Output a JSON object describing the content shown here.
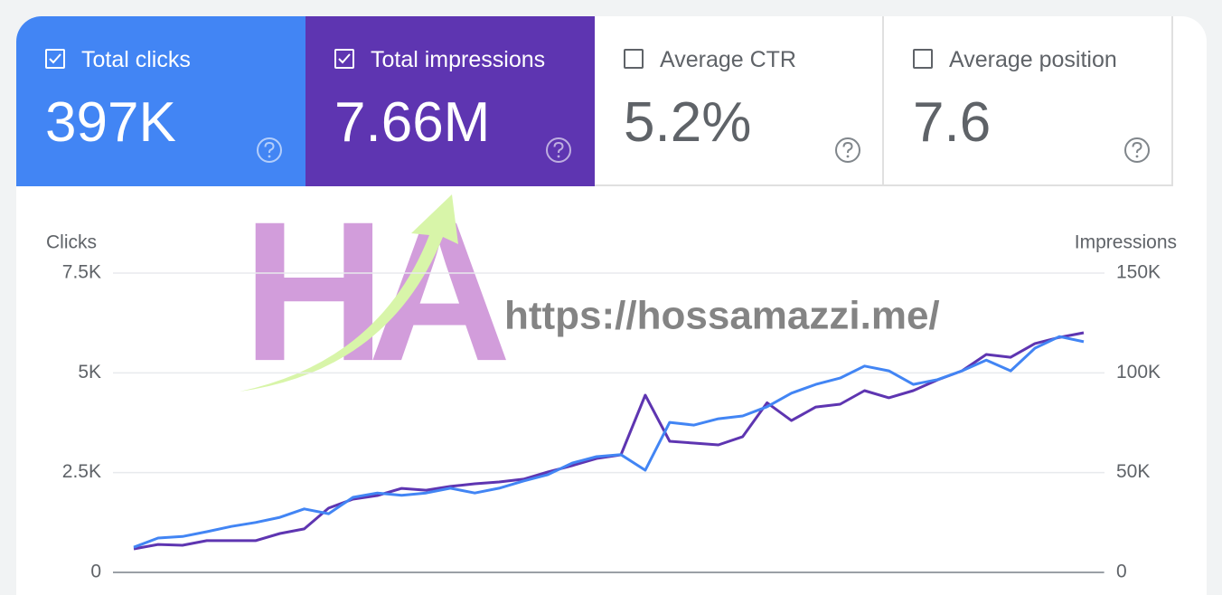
{
  "cards": [
    {
      "label": "Total clicks",
      "value": "397K",
      "checked": true,
      "color": "#4285f4"
    },
    {
      "label": "Total impressions",
      "value": "7.66M",
      "checked": true,
      "color": "#5e35b1"
    },
    {
      "label": "Average CTR",
      "value": "5.2%",
      "checked": false,
      "color": "#ffffff"
    },
    {
      "label": "Average position",
      "value": "7.6",
      "checked": false,
      "color": "#ffffff"
    }
  ],
  "watermark": {
    "logo": "HA",
    "url": "https://hossamazzi.me/"
  },
  "chart_data": {
    "type": "line",
    "categories": [
      null,
      null,
      null,
      null,
      null,
      null,
      null,
      null,
      null,
      null,
      null,
      null,
      null,
      null,
      null,
      null,
      null,
      null,
      null,
      null,
      null,
      null,
      null,
      null,
      null,
      null,
      null,
      null,
      null,
      null,
      null,
      null,
      null,
      null,
      null,
      null,
      null,
      null,
      null,
      null
    ],
    "series": [
      {
        "name": "Clicks",
        "color": "#4285f4",
        "axis": "y",
        "values": [
          630,
          860,
          900,
          1020,
          1150,
          1250,
          1380,
          1590,
          1470,
          1880,
          1990,
          1930,
          1990,
          2110,
          1990,
          2110,
          2290,
          2450,
          2740,
          2900,
          2950,
          2560,
          3760,
          3690,
          3850,
          3920,
          4150,
          4490,
          4710,
          4870,
          5170,
          5050,
          4710,
          4830,
          5050,
          5320,
          5050,
          5620,
          5910,
          5780
        ]
      },
      {
        "name": "Impressions",
        "color": "#5e35b1",
        "axis": "y2",
        "values": [
          11800,
          14000,
          13600,
          15900,
          15900,
          15900,
          19500,
          21800,
          32200,
          36700,
          38500,
          42100,
          41200,
          43100,
          44400,
          45300,
          46700,
          50300,
          53500,
          57100,
          58900,
          88800,
          65700,
          64800,
          63900,
          68000,
          85000,
          76100,
          82900,
          84300,
          91100,
          87500,
          91100,
          96500,
          101000,
          109200,
          107800,
          114700,
          117800,
          120100
        ]
      }
    ],
    "ylim": [
      0,
      7500
    ],
    "yticks": [
      0,
      {
        "value": 2500,
        "label": "2.5K"
      },
      {
        "value": 5000,
        "label": "5K"
      },
      {
        "value": 7500,
        "label": "7.5K"
      }
    ],
    "y2lim": [
      0,
      150000
    ],
    "y2ticks": [
      0,
      {
        "value": 50000,
        "label": "50K"
      },
      {
        "value": 100000,
        "label": "100K"
      },
      {
        "value": 150000,
        "label": "150K"
      }
    ],
    "grid": true
  }
}
